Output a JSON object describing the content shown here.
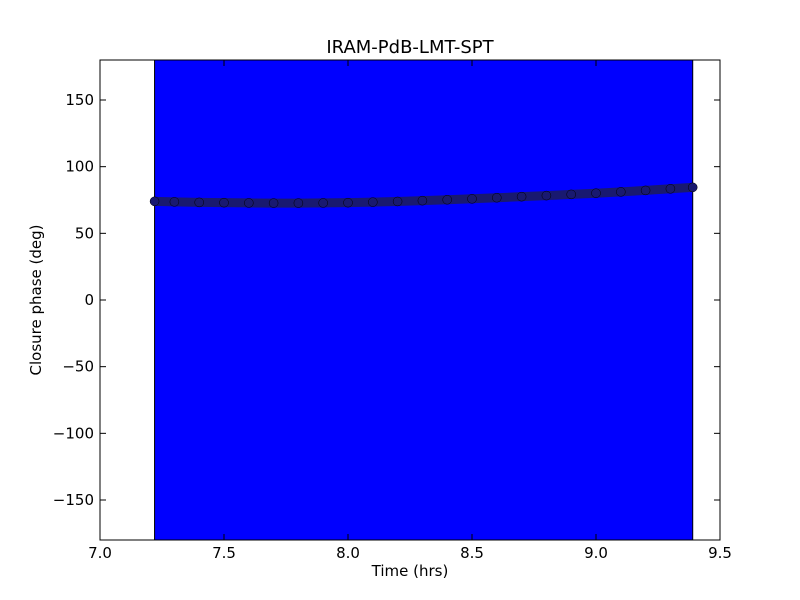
{
  "chart_data": {
    "type": "scatter",
    "title": "IRAM-PdB-LMT-SPT",
    "xlabel": "Time (hrs)",
    "ylabel": "Closure phase (deg)",
    "xlim": [
      7.0,
      9.5
    ],
    "ylim": [
      -180,
      180
    ],
    "x_ticks": [
      7.0,
      7.5,
      8.0,
      8.5,
      9.0,
      9.5
    ],
    "x_tick_labels": [
      "7.0",
      "7.5",
      "8.0",
      "8.5",
      "9.0",
      "9.5"
    ],
    "y_ticks": [
      150,
      100,
      50,
      0,
      -50,
      -100,
      -150
    ],
    "y_tick_labels": [
      "150",
      "100",
      "50",
      "0",
      "−50",
      "−100",
      "−150"
    ],
    "grid": false,
    "error_band": {
      "x_start": 7.22,
      "x_end": 9.39,
      "y_low": -180,
      "y_high": 180,
      "color": "#0000ff"
    },
    "series": [
      {
        "marker_color": "#191970",
        "x": [
          7.22,
          7.3,
          7.4,
          7.5,
          7.6,
          7.7,
          7.8,
          7.9,
          8.0,
          8.1,
          8.2,
          8.3,
          8.4,
          8.5,
          8.6,
          8.7,
          8.8,
          8.9,
          9.0,
          9.1,
          9.2,
          9.3,
          9.39
        ],
        "y": [
          74,
          73.6,
          73.2,
          73.0,
          72.8,
          72.7,
          72.7,
          72.8,
          73.0,
          73.4,
          73.9,
          74.5,
          75.2,
          75.9,
          76.7,
          77.5,
          78.3,
          79.2,
          80.1,
          81.1,
          82.2,
          83.4,
          84.5
        ]
      }
    ]
  }
}
